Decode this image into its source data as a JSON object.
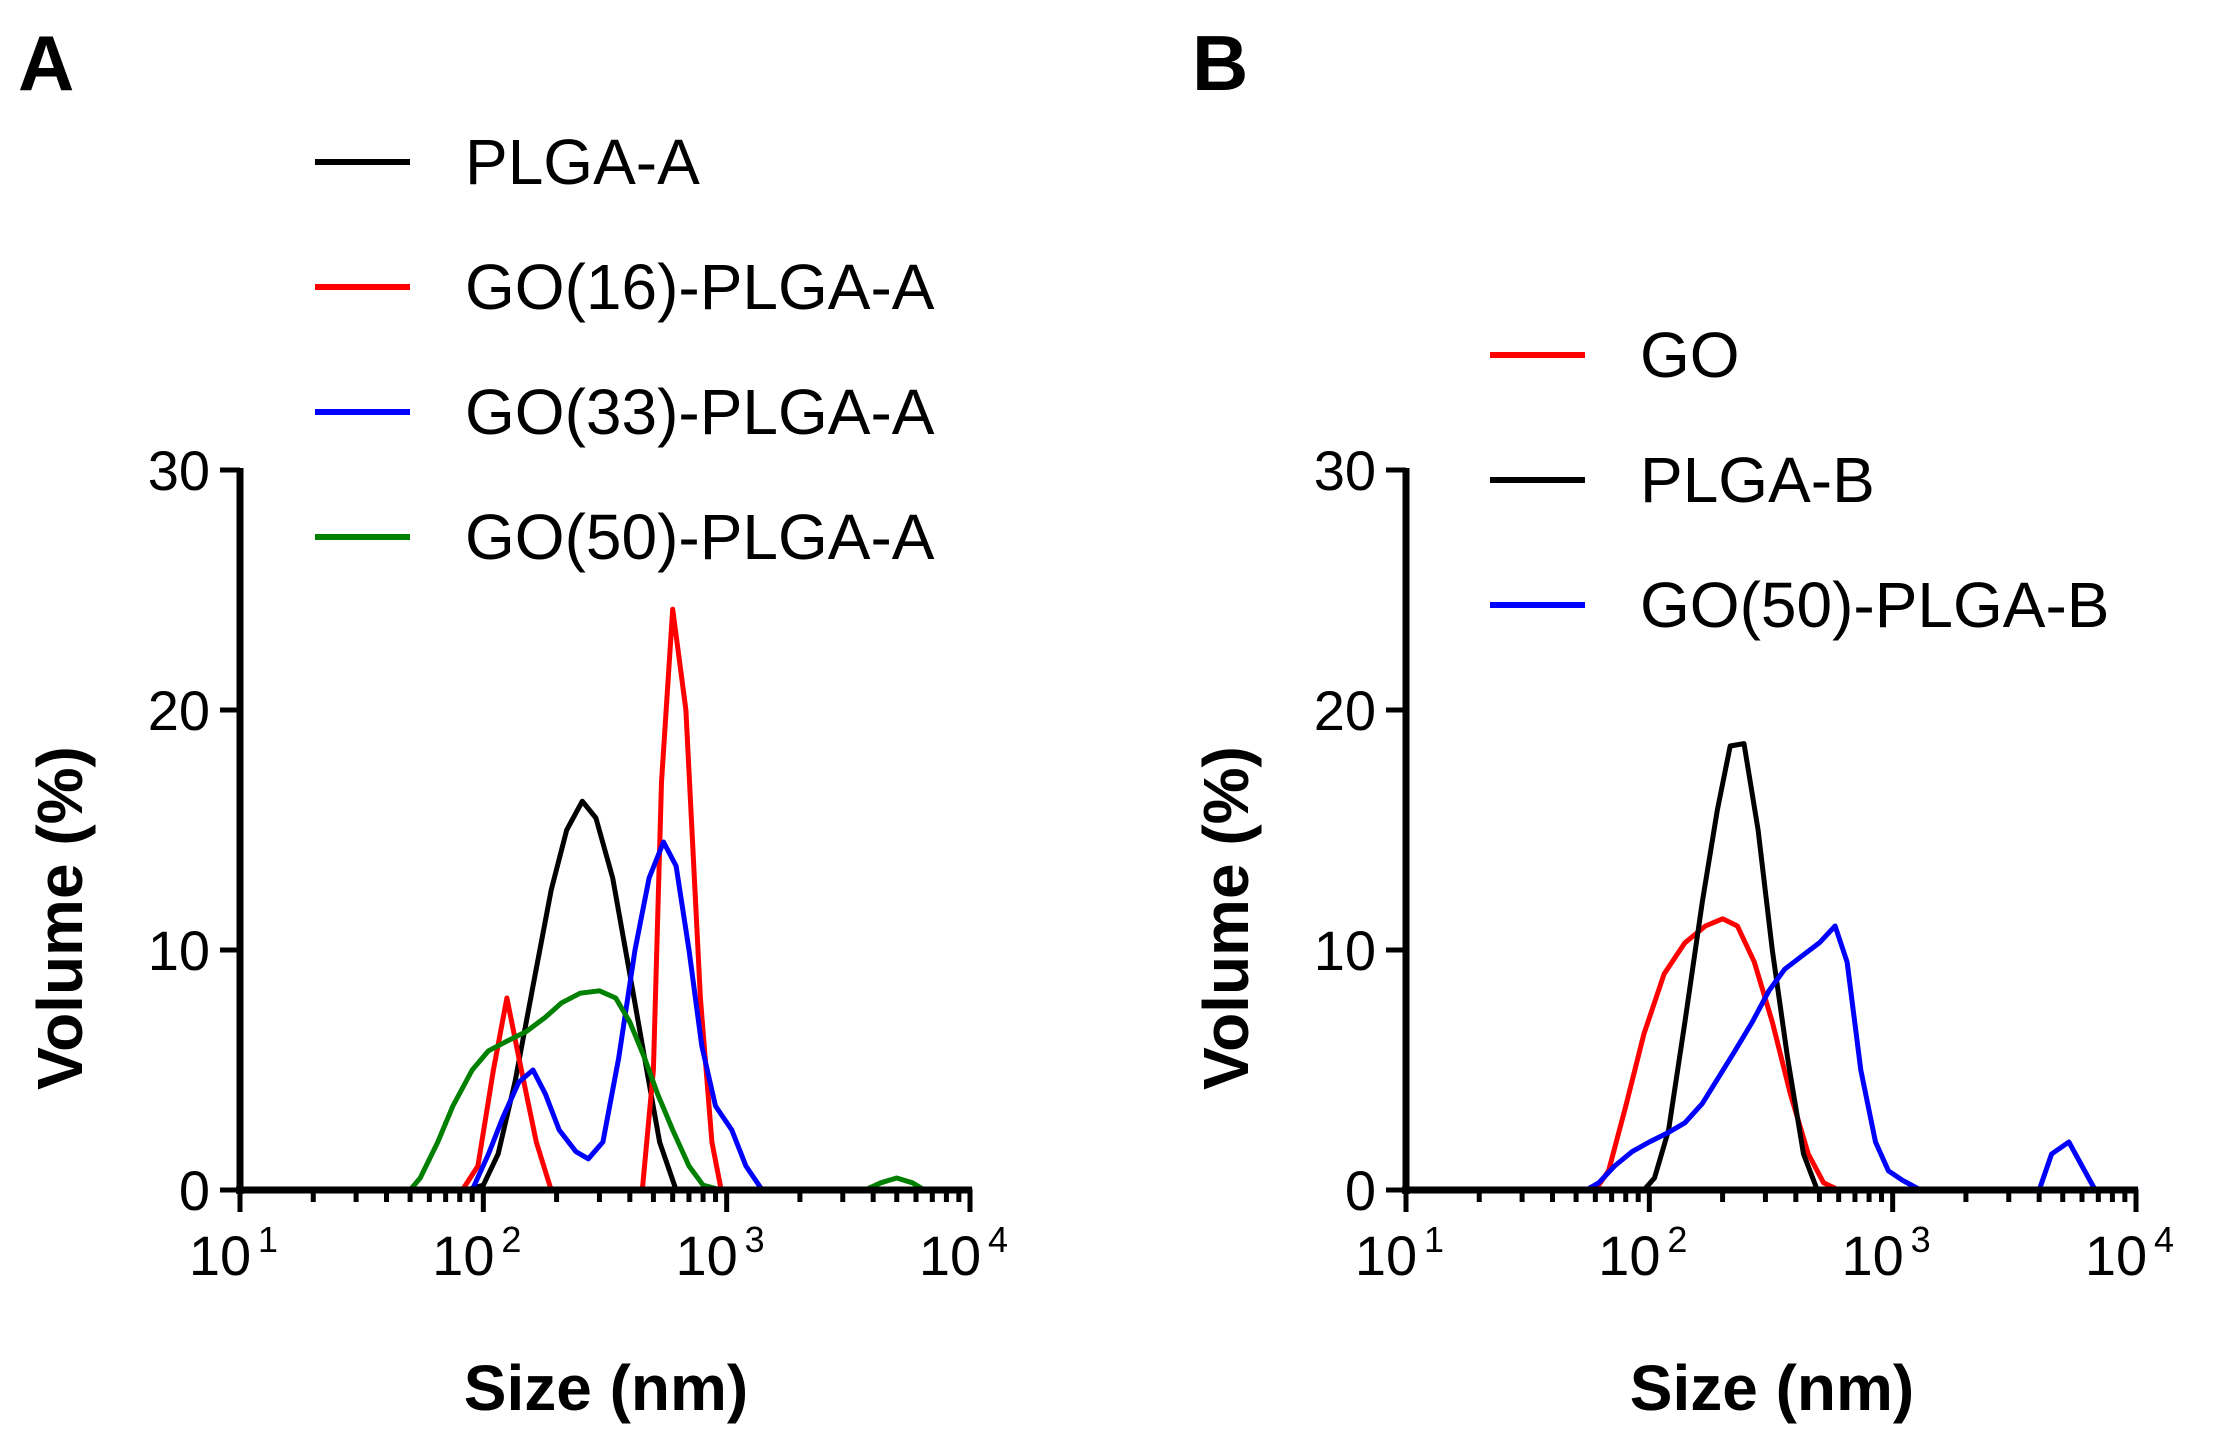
{
  "chart_data": [
    {
      "panel": "A",
      "type": "line",
      "xlabel": "Size (nm)",
      "ylabel": "Volume (%)",
      "xscale": "log",
      "xlim": [
        10,
        10000
      ],
      "ylim": [
        0,
        30
      ],
      "yticks": [
        0,
        10,
        20,
        30
      ],
      "xticks": [
        {
          "base": "10",
          "exp": "1",
          "value": 10
        },
        {
          "base": "10",
          "exp": "2",
          "value": 100
        },
        {
          "base": "10",
          "exp": "3",
          "value": 1000
        },
        {
          "base": "10",
          "exp": "4",
          "value": 10000
        }
      ],
      "legend_position": "top",
      "series": [
        {
          "name": "PLGA-A",
          "color": "#000000",
          "points": [
            [
              10,
              0
            ],
            [
              85,
              0
            ],
            [
              100,
              0.2
            ],
            [
              115,
              1.5
            ],
            [
              135,
              4.5
            ],
            [
              160,
              8.5
            ],
            [
              190,
              12.5
            ],
            [
              220,
              15
            ],
            [
              255,
              16.2
            ],
            [
              290,
              15.5
            ],
            [
              340,
              13
            ],
            [
              400,
              9
            ],
            [
              460,
              5.5
            ],
            [
              530,
              2
            ],
            [
              620,
              0
            ],
            [
              10000,
              0
            ]
          ]
        },
        {
          "name": "GO(16)-PLGA-A",
          "color": "#ff0000",
          "points": [
            [
              10,
              0
            ],
            [
              82,
              0
            ],
            [
              95,
              1
            ],
            [
              110,
              5
            ],
            [
              125,
              8
            ],
            [
              140,
              5.5
            ],
            [
              165,
              2
            ],
            [
              190,
              0
            ],
            [
              450,
              0
            ],
            [
              500,
              5
            ],
            [
              540,
              17
            ],
            [
              600,
              24.2
            ],
            [
              680,
              20
            ],
            [
              780,
              8
            ],
            [
              870,
              2
            ],
            [
              950,
              0
            ],
            [
              10000,
              0
            ]
          ]
        },
        {
          "name": "GO(33)-PLGA-A",
          "color": "#0000ff",
          "points": [
            [
              10,
              0
            ],
            [
              90,
              0
            ],
            [
              105,
              1.5
            ],
            [
              120,
              3
            ],
            [
              140,
              4.5
            ],
            [
              160,
              5
            ],
            [
              180,
              4
            ],
            [
              205,
              2.5
            ],
            [
              240,
              1.6
            ],
            [
              270,
              1.3
            ],
            [
              310,
              2
            ],
            [
              360,
              5.5
            ],
            [
              420,
              10
            ],
            [
              480,
              13
            ],
            [
              550,
              14.5
            ],
            [
              620,
              13.5
            ],
            [
              700,
              10
            ],
            [
              790,
              6
            ],
            [
              900,
              3.5
            ],
            [
              1050,
              2.5
            ],
            [
              1200,
              1
            ],
            [
              1400,
              0
            ],
            [
              10000,
              0
            ]
          ]
        },
        {
          "name": "GO(50)-PLGA-A",
          "color": "#008000",
          "points": [
            [
              10,
              0
            ],
            [
              50,
              0
            ],
            [
              55,
              0.5
            ],
            [
              65,
              2
            ],
            [
              75,
              3.5
            ],
            [
              90,
              5
            ],
            [
              105,
              5.8
            ],
            [
              125,
              6.2
            ],
            [
              150,
              6.6
            ],
            [
              180,
              7.2
            ],
            [
              210,
              7.8
            ],
            [
              250,
              8.2
            ],
            [
              300,
              8.3
            ],
            [
              350,
              8
            ],
            [
              400,
              7
            ],
            [
              460,
              5.5
            ],
            [
              520,
              4
            ],
            [
              600,
              2.5
            ],
            [
              700,
              1
            ],
            [
              800,
              0.2
            ],
            [
              950,
              0
            ],
            [
              3700,
              0
            ],
            [
              4300,
              0.3
            ],
            [
              5000,
              0.5
            ],
            [
              5800,
              0.3
            ],
            [
              6500,
              0
            ],
            [
              10000,
              0
            ]
          ]
        }
      ]
    },
    {
      "panel": "B",
      "type": "line",
      "xlabel": "Size (nm)",
      "ylabel": "Volume (%)",
      "xscale": "log",
      "xlim": [
        10,
        10000
      ],
      "ylim": [
        0,
        30
      ],
      "yticks": [
        0,
        10,
        20,
        30
      ],
      "xticks": [
        {
          "base": "10",
          "exp": "1",
          "value": 10
        },
        {
          "base": "10",
          "exp": "2",
          "value": 100
        },
        {
          "base": "10",
          "exp": "3",
          "value": 1000
        },
        {
          "base": "10",
          "exp": "4",
          "value": 10000
        }
      ],
      "legend_position": "top-right",
      "series": [
        {
          "name": "GO",
          "color": "#ff0000",
          "points": [
            [
              10,
              0
            ],
            [
              60,
              0
            ],
            [
              68,
              0.8
            ],
            [
              80,
              3.5
            ],
            [
              95,
              6.5
            ],
            [
              115,
              9
            ],
            [
              140,
              10.3
            ],
            [
              170,
              11
            ],
            [
              200,
              11.3
            ],
            [
              230,
              11
            ],
            [
              270,
              9.5
            ],
            [
              320,
              7
            ],
            [
              380,
              4
            ],
            [
              450,
              1.5
            ],
            [
              520,
              0.3
            ],
            [
              600,
              0
            ],
            [
              10000,
              0
            ]
          ]
        },
        {
          "name": "PLGA-B",
          "color": "#000000",
          "points": [
            [
              10,
              0
            ],
            [
              95,
              0
            ],
            [
              105,
              0.5
            ],
            [
              120,
              2.5
            ],
            [
              140,
              7
            ],
            [
              165,
              12
            ],
            [
              190,
              15.8
            ],
            [
              215,
              18.5
            ],
            [
              245,
              18.6
            ],
            [
              280,
              15
            ],
            [
              320,
              10
            ],
            [
              370,
              5.5
            ],
            [
              430,
              1.5
            ],
            [
              490,
              0
            ],
            [
              10000,
              0
            ]
          ]
        },
        {
          "name": "GO(50)-PLGA-B",
          "color": "#0000ff",
          "points": [
            [
              10,
              0
            ],
            [
              55,
              0
            ],
            [
              62,
              0.3
            ],
            [
              72,
              1
            ],
            [
              85,
              1.6
            ],
            [
              100,
              2
            ],
            [
              120,
              2.4
            ],
            [
              140,
              2.8
            ],
            [
              165,
              3.6
            ],
            [
              190,
              4.6
            ],
            [
              225,
              5.8
            ],
            [
              265,
              7
            ],
            [
              310,
              8.3
            ],
            [
              360,
              9.2
            ],
            [
              430,
              9.8
            ],
            [
              500,
              10.3
            ],
            [
              580,
              11
            ],
            [
              650,
              9.5
            ],
            [
              740,
              5
            ],
            [
              850,
              2
            ],
            [
              960,
              0.8
            ],
            [
              1100,
              0.4
            ],
            [
              1300,
              0
            ],
            [
              4000,
              0
            ],
            [
              4500,
              1.5
            ],
            [
              5300,
              2
            ],
            [
              6000,
              1
            ],
            [
              6800,
              0
            ],
            [
              10000,
              0
            ]
          ]
        }
      ]
    }
  ]
}
